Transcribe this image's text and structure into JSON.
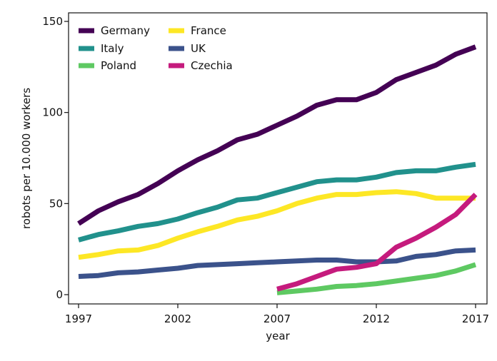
{
  "colors": {
    "Germany": "#440154",
    "Italy": "#21918c",
    "Poland": "#5ec962",
    "France": "#fde725",
    "UK": "#3b528b",
    "Czechia": "#c51b7d",
    "axis": "#111111",
    "background": "#ffffff"
  },
  "chart_data": {
    "type": "line",
    "title": "",
    "xlabel": "year",
    "ylabel": "robots per 10.000 workers",
    "xlim": [
      1997,
      2017
    ],
    "ylim": [
      0,
      150
    ],
    "x_ticks": [
      1997,
      2002,
      2007,
      2012,
      2017
    ],
    "y_ticks": [
      0,
      50,
      100,
      150
    ],
    "grid": false,
    "legend_position": "top-left",
    "legend_columns": 2,
    "series": [
      {
        "name": "Germany",
        "x": [
          1997,
          1998,
          1999,
          2000,
          2001,
          2002,
          2003,
          2004,
          2005,
          2006,
          2007,
          2008,
          2009,
          2010,
          2011,
          2012,
          2013,
          2014,
          2015,
          2016,
          2017
        ],
        "values": [
          39,
          46,
          51,
          55,
          61,
          68,
          74,
          79,
          85,
          88,
          93,
          98,
          104,
          107,
          107,
          111,
          118,
          122,
          126,
          132,
          136
        ]
      },
      {
        "name": "Italy",
        "x": [
          1997,
          1998,
          1999,
          2000,
          2001,
          2002,
          2003,
          2004,
          2005,
          2006,
          2007,
          2008,
          2009,
          2010,
          2011,
          2012,
          2013,
          2014,
          2015,
          2016,
          2017
        ],
        "values": [
          30,
          33,
          35,
          37.5,
          39,
          41.5,
          45,
          48,
          52,
          53,
          56,
          59,
          62,
          63,
          63,
          64.5,
          67,
          68,
          68,
          70,
          71.5
        ]
      },
      {
        "name": "Poland",
        "x": [
          2007,
          2008,
          2009,
          2010,
          2011,
          2012,
          2013,
          2014,
          2015,
          2016,
          2017
        ],
        "values": [
          1,
          2,
          3,
          4.5,
          5,
          6,
          7.5,
          9,
          10.5,
          13,
          16.5
        ]
      },
      {
        "name": "France",
        "x": [
          1997,
          1998,
          1999,
          2000,
          2001,
          2002,
          2003,
          2004,
          2005,
          2006,
          2007,
          2008,
          2009,
          2010,
          2011,
          2012,
          2013,
          2014,
          2015,
          2016,
          2017
        ],
        "values": [
          20.5,
          22,
          24,
          24.5,
          27,
          31,
          34.5,
          37.5,
          41,
          43,
          46,
          50,
          53,
          55,
          55,
          56,
          56.5,
          55.5,
          53,
          53,
          53
        ]
      },
      {
        "name": "UK",
        "x": [
          1997,
          1998,
          1999,
          2000,
          2001,
          2002,
          2003,
          2004,
          2005,
          2006,
          2007,
          2008,
          2009,
          2010,
          2011,
          2012,
          2013,
          2014,
          2015,
          2016,
          2017
        ],
        "values": [
          10,
          10.5,
          12,
          12.5,
          13.5,
          14.5,
          16,
          16.5,
          17,
          17.5,
          18,
          18.5,
          19,
          19,
          18,
          18,
          18.5,
          21,
          22,
          24,
          24.5
        ]
      },
      {
        "name": "Czechia",
        "x": [
          2007,
          2008,
          2009,
          2010,
          2011,
          2012,
          2013,
          2014,
          2015,
          2016,
          2017
        ],
        "values": [
          3,
          6,
          10,
          14,
          15,
          17,
          26,
          31,
          37,
          44,
          55
        ]
      }
    ]
  }
}
